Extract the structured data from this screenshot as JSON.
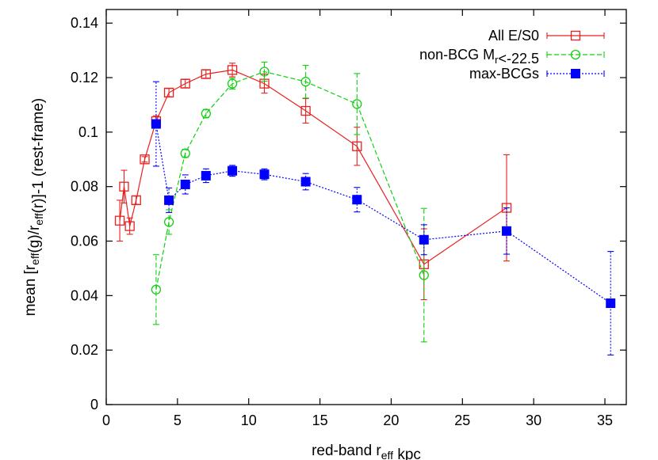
{
  "chart_data": {
    "type": "line",
    "xlabel": "red-band r_eff kpc",
    "ylabel": "mean [r_eff(g)/r_eff(r)]-1 (rest-frame)",
    "xlim": [
      0,
      36.5
    ],
    "ylim": [
      0,
      0.145
    ],
    "x_ticks": [
      0,
      5,
      10,
      15,
      20,
      25,
      30,
      35
    ],
    "y_ticks": [
      0,
      0.02,
      0.04,
      0.06,
      0.08,
      0.1,
      0.12,
      0.14
    ],
    "x_tick_labels": [
      "0",
      "5",
      "10",
      "15",
      "20",
      "25",
      "30",
      "35"
    ],
    "y_tick_labels": [
      "0",
      "0.02",
      "0.04",
      "0.06",
      "0.08",
      "0.1",
      "0.12",
      "0.14"
    ],
    "legend_position": "top-right",
    "grid": false,
    "series": [
      {
        "name": "All E/S0",
        "color": "#e8201f",
        "marker": "open-square",
        "line": "solid",
        "points": [
          {
            "x": 0.95,
            "y": 0.0675,
            "err": 0.0075
          },
          {
            "x": 1.25,
            "y": 0.08,
            "err": 0.006
          },
          {
            "x": 1.65,
            "y": 0.0655,
            "err": 0.003
          },
          {
            "x": 2.1,
            "y": 0.075,
            "err": 0.0015
          },
          {
            "x": 2.7,
            "y": 0.09,
            "err": 0.001
          },
          {
            "x": 3.5,
            "y": 0.104,
            "err": 0.002
          },
          {
            "x": 4.4,
            "y": 0.1145,
            "err": 0.0015
          },
          {
            "x": 5.55,
            "y": 0.1178,
            "err": 0.0015
          },
          {
            "x": 7.0,
            "y": 0.1213,
            "err": 0.0015
          },
          {
            "x": 8.85,
            "y": 0.1228,
            "err": 0.0025
          },
          {
            "x": 11.1,
            "y": 0.1178,
            "err": 0.0035
          },
          {
            "x": 14.0,
            "y": 0.1078,
            "err": 0.0045
          },
          {
            "x": 17.6,
            "y": 0.0948,
            "err": 0.007
          },
          {
            "x": 22.3,
            "y": 0.0515,
            "err": 0.013
          },
          {
            "x": 28.1,
            "y": 0.0722,
            "err": 0.0195
          }
        ]
      },
      {
        "name": "non-BCG M_r<-22.5",
        "color": "#10d010",
        "marker": "open-circle",
        "line": "dashed",
        "points": [
          {
            "x": 3.5,
            "y": 0.0422,
            "err": 0.0128
          },
          {
            "x": 4.4,
            "y": 0.067,
            "err": 0.0045
          },
          {
            "x": 5.55,
            "y": 0.0922,
            "err": 0.0015
          },
          {
            "x": 7.0,
            "y": 0.1068,
            "err": 0.0015
          },
          {
            "x": 8.85,
            "y": 0.1178,
            "err": 0.002
          },
          {
            "x": 11.1,
            "y": 0.1222,
            "err": 0.0035
          },
          {
            "x": 14.0,
            "y": 0.1185,
            "err": 0.006
          },
          {
            "x": 17.6,
            "y": 0.1103,
            "err": 0.0112
          },
          {
            "x": 22.3,
            "y": 0.0475,
            "err": 0.0245
          }
        ]
      },
      {
        "name": "max-BCGs",
        "color": "#0000ff",
        "marker": "filled-square",
        "line": "dotted",
        "points": [
          {
            "x": 3.5,
            "y": 0.103,
            "err": 0.0155
          },
          {
            "x": 4.4,
            "y": 0.075,
            "err": 0.0045
          },
          {
            "x": 5.55,
            "y": 0.0808,
            "err": 0.0035
          },
          {
            "x": 7.0,
            "y": 0.084,
            "err": 0.0025
          },
          {
            "x": 8.85,
            "y": 0.0858,
            "err": 0.002
          },
          {
            "x": 11.1,
            "y": 0.0845,
            "err": 0.002
          },
          {
            "x": 14.0,
            "y": 0.0818,
            "err": 0.003
          },
          {
            "x": 17.6,
            "y": 0.0752,
            "err": 0.0045
          },
          {
            "x": 22.3,
            "y": 0.0605,
            "err": 0.0055
          },
          {
            "x": 28.1,
            "y": 0.0637,
            "err": 0.0085
          },
          {
            "x": 35.4,
            "y": 0.0372,
            "err": 0.019
          }
        ]
      }
    ]
  }
}
